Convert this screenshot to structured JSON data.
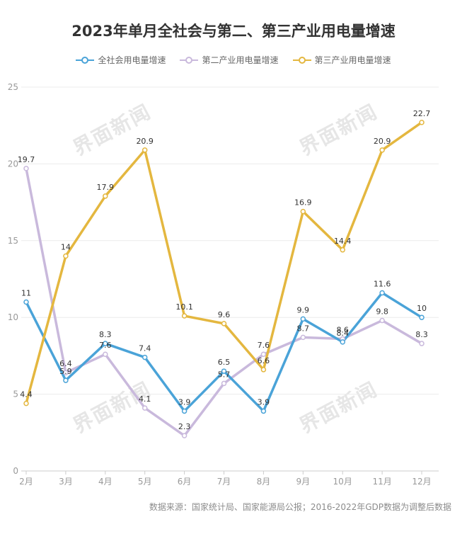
{
  "title": "2023年单月全社会与第二、第三产业用电量增速",
  "source": "数据来源：国家统计局、国家能源局公报；2016-2022年GDP数据为调整后数据",
  "watermark": "界面新闻",
  "chart_data": {
    "type": "line",
    "title": "2023年单月全社会与第二、第三产业用电量增速",
    "categories": [
      "2月",
      "3月",
      "4月",
      "5月",
      "6月",
      "7月",
      "8月",
      "9月",
      "10月",
      "11月",
      "12月"
    ],
    "ylim": [
      0,
      25
    ],
    "yticks": [
      0,
      5,
      10,
      15,
      20,
      25
    ],
    "grid": true,
    "legend_position": "top-center",
    "series": [
      {
        "name": "全社会用电量增速",
        "color": "#4aa3d8",
        "values": [
          11,
          5.9,
          8.3,
          7.4,
          3.9,
          6.5,
          3.9,
          9.9,
          8.4,
          11.6,
          10
        ]
      },
      {
        "name": "第二产业用电量增速",
        "color": "#c9b9dc",
        "values": [
          19.7,
          6.4,
          7.6,
          4.1,
          2.3,
          5.7,
          7.6,
          8.7,
          8.6,
          9.8,
          8.3
        ]
      },
      {
        "name": "第三产业用电量增速",
        "color": "#e4b73f",
        "values": [
          4.4,
          14,
          17.9,
          20.9,
          10.1,
          9.6,
          6.6,
          16.9,
          14.4,
          20.9,
          22.7
        ]
      }
    ]
  }
}
